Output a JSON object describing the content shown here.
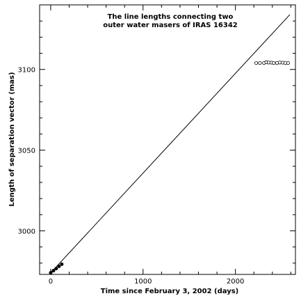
{
  "chart_data": {
    "type": "scatter",
    "title": [
      "The line lengths connecting two",
      "outer water masers of IRAS 16342"
    ],
    "xlabel": "Time since February 3, 2002 (days)",
    "ylabel": "Length of separation vector (mas)",
    "xlim": [
      -120,
      2650
    ],
    "ylim": [
      2973,
      3140
    ],
    "xticks": [
      0,
      1000,
      2000
    ],
    "yticks": [
      3000,
      3050,
      3100
    ],
    "grid": false,
    "legend": "none",
    "series": [
      {
        "kind": "points-filled",
        "x": [
          0,
          30,
          60,
          90,
          120
        ],
        "y": [
          2974.0,
          2975.3,
          2976.6,
          2978.0,
          2979.3
        ]
      },
      {
        "kind": "points-open",
        "x": [
          2225,
          2265,
          2310,
          2335,
          2360,
          2390,
          2415,
          2450,
          2480,
          2510,
          2540,
          2570
        ],
        "y": [
          3104.0,
          3104.0,
          3104.0,
          3104.5,
          3104.3,
          3104.2,
          3104.0,
          3104.0,
          3104.3,
          3104.2,
          3104.0,
          3104.0
        ]
      },
      {
        "kind": "line",
        "x": [
          0,
          2590
        ],
        "y": [
          2974.0,
          3134.0
        ]
      }
    ]
  }
}
